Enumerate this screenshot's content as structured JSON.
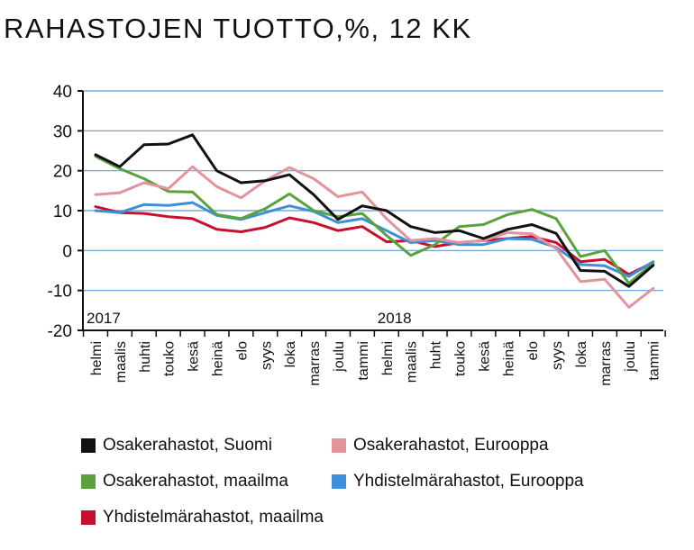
{
  "chart_data": {
    "type": "line",
    "title": "RAHASTOJEN TUOTTO,%, 12 KK",
    "xlabel": "",
    "ylabel": "",
    "ylim": [
      -20,
      40
    ],
    "yticks": [
      40,
      30,
      20,
      10,
      0,
      -10,
      -20
    ],
    "grid": "horizontal",
    "legend_position": "bottom",
    "categories": [
      "helmi",
      "maalis",
      "huhti",
      "touko",
      "kesä",
      "heinä",
      "elo",
      "syys",
      "loka",
      "marras",
      "joulu",
      "tammi",
      "helmi",
      "maalis",
      "huht",
      "touko",
      "kesä",
      "heinä",
      "elo",
      "syys",
      "loka",
      "marras",
      "joulu",
      "tammi"
    ],
    "year_labels": [
      {
        "label": "2017",
        "category_index": 0
      },
      {
        "label": "2018",
        "category_index": 12
      }
    ],
    "series": [
      {
        "name": "Osakerahastot, Suomi",
        "color": "#111111",
        "values": [
          24,
          21,
          26.5,
          26.7,
          29,
          20,
          17,
          17.5,
          19,
          14,
          7.8,
          11.2,
          10,
          6,
          4.5,
          5,
          3,
          5.3,
          6.5,
          4.3,
          -5,
          -5.2,
          -9,
          -3.7
        ]
      },
      {
        "name": "Osakerahastot, Eurooppa",
        "color": "#e3939c",
        "values": [
          14,
          14.5,
          17,
          15.5,
          21,
          16,
          13.2,
          17.5,
          20.8,
          18,
          13.5,
          14.7,
          8,
          2.5,
          3,
          2,
          2.5,
          4.5,
          4.2,
          0.5,
          -7.8,
          -7.2,
          -14.2,
          -9.5
        ]
      },
      {
        "name": "Osakerahastot, maailma",
        "color": "#5aa23c",
        "values": [
          23.6,
          20.5,
          18,
          14.8,
          14.7,
          9,
          8,
          10.5,
          14.2,
          10,
          8.5,
          9.3,
          3.8,
          -1.2,
          1.5,
          6,
          6.5,
          9,
          10.3,
          8,
          -1.5,
          0,
          -8.2,
          -3.2
        ]
      },
      {
        "name": "Yhdistelmärahastot, Eurooppa",
        "color": "#3c8fd8",
        "values": [
          10,
          9.5,
          11.5,
          11.3,
          12,
          8.8,
          7.8,
          9.5,
          11.2,
          9.8,
          7,
          8,
          5,
          2,
          2.5,
          1.5,
          1.5,
          3,
          2.8,
          0.8,
          -3.5,
          -3.8,
          -6.5,
          -2.8
        ]
      },
      {
        "name": "Yhdistelmärahastot, maailma",
        "color": "#c8102e",
        "values": [
          11,
          9.5,
          9.3,
          8.5,
          8,
          5.3,
          4.7,
          5.8,
          8.2,
          7,
          5,
          6,
          2.2,
          2.5,
          1,
          2,
          2.5,
          3,
          3.5,
          2,
          -2.8,
          -2.2,
          -6,
          -3
        ]
      }
    ]
  }
}
